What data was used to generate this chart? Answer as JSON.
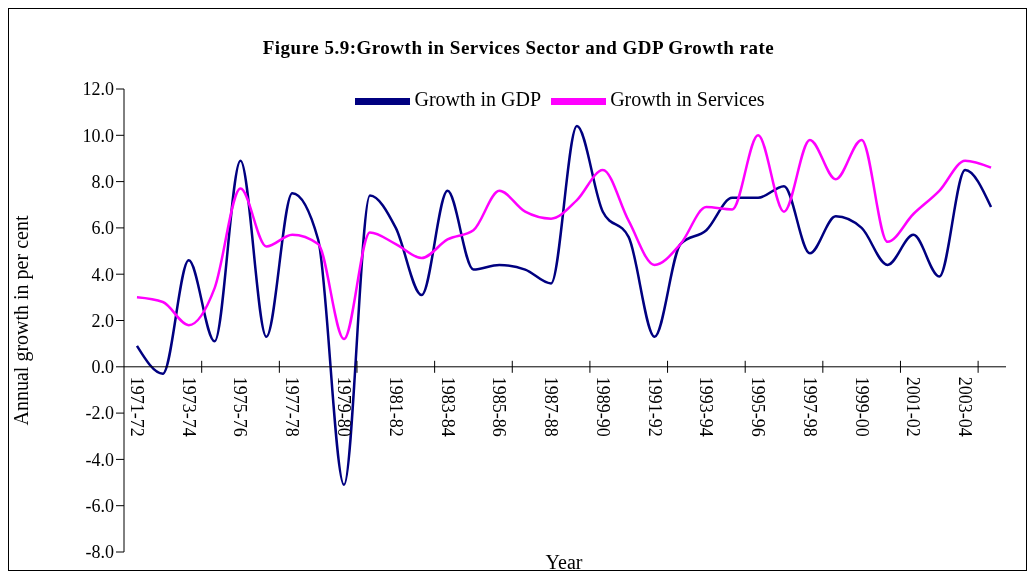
{
  "chart_data": {
    "type": "line",
    "title": "Figure 5.9:Growth in Services Sector and GDP Growth rate",
    "xlabel": "Year",
    "ylabel": "Annual growth in per cent",
    "categories": [
      "1971-72",
      null,
      "1973-74",
      null,
      "1975-76",
      null,
      "1977-78",
      null,
      "1979-80",
      null,
      "1981-82",
      null,
      "1983-84",
      null,
      "1985-86",
      null,
      "1987-88",
      null,
      "1989-90",
      null,
      "1991-92",
      null,
      "1993-94",
      null,
      "1995-96",
      null,
      "1997-98",
      null,
      "1999-00",
      null,
      "2001-02",
      null,
      "2003-04",
      null
    ],
    "series": [
      {
        "name": "Growth in GDP",
        "color": "#000080",
        "values": [
          0.9,
          -0.3,
          4.6,
          1.1,
          8.9,
          1.3,
          7.5,
          5.5,
          -5.1,
          7.4,
          6.0,
          3.1,
          7.6,
          4.2,
          4.4,
          4.2,
          3.6,
          10.4,
          6.7,
          5.6,
          1.3,
          5.3,
          5.9,
          7.3,
          7.3,
          7.8,
          4.9,
          6.5,
          6.0,
          4.4,
          5.7,
          3.9,
          8.5,
          6.9
        ]
      },
      {
        "name": "Growth in Services",
        "color": "#ff00ff",
        "values": [
          3.0,
          2.8,
          1.8,
          3.4,
          7.7,
          5.2,
          5.7,
          5.3,
          1.2,
          5.8,
          5.3,
          4.7,
          5.5,
          5.9,
          7.6,
          6.7,
          6.4,
          7.2,
          8.5,
          6.3,
          4.4,
          5.3,
          6.9,
          6.8,
          10.0,
          6.7,
          9.8,
          8.1,
          9.8,
          5.4,
          6.6,
          7.6,
          8.9,
          8.6
        ]
      }
    ],
    "ylim": [
      -8,
      12
    ],
    "yticks": [
      {
        "value": -8,
        "label": "-8.0"
      },
      {
        "value": -6,
        "label": "-6.0"
      },
      {
        "value": -4,
        "label": "-4.0"
      },
      {
        "value": -2,
        "label": "-2.0"
      },
      {
        "value": 0,
        "label": "0.0"
      },
      {
        "value": 2,
        "label": "2.0"
      },
      {
        "value": 4,
        "label": "4.0"
      },
      {
        "value": 6,
        "label": "6.0"
      },
      {
        "value": 8,
        "label": "8.0"
      },
      {
        "value": 10,
        "label": "10.0"
      },
      {
        "value": 12,
        "label": "12.0"
      }
    ],
    "legend": "top",
    "marker": "none",
    "line_style": "solid"
  }
}
